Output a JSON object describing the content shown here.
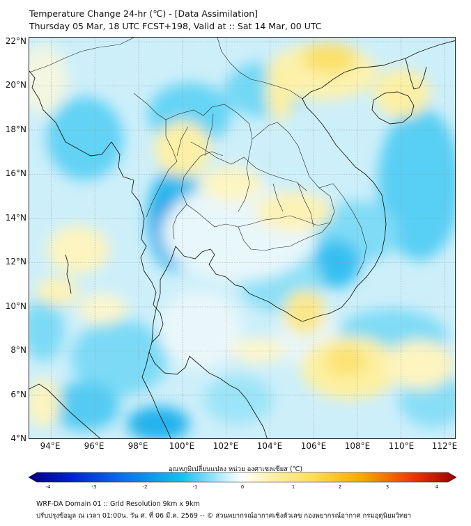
{
  "header": {
    "title_line1": "Temperature Change 24-hr (℃) - [Data Assimilation]",
    "title_line2": "Thursday 05 Mar, 18 UTC FCST+198, Valid at :: Sat 14 Mar, 00 UTC"
  },
  "map": {
    "lon_range": [
      93,
      112.5
    ],
    "lat_range": [
      4,
      22.2
    ],
    "lat_labels": [
      "22°N",
      "20°N",
      "18°N",
      "16°N",
      "14°N",
      "12°N",
      "10°N",
      "8°N",
      "6°N",
      "4°N"
    ],
    "lon_labels": [
      "94°E",
      "96°E",
      "98°E",
      "100°E",
      "102°E",
      "104°E",
      "106°E",
      "108°E",
      "110°E",
      "112°E"
    ],
    "grid": "dotted"
  },
  "colorbar": {
    "title": "อุณหภูมิเปลี่ยนแปลง หน่วย องศาเซลเซียส (℃)",
    "ticks": [
      "-4",
      "-3",
      "-2",
      "-1",
      "0",
      "1",
      "2",
      "3",
      "4"
    ],
    "range": [
      -4,
      4
    ],
    "colors": [
      "#00007f",
      "#0022cc",
      "#0a70e8",
      "#19c0f0",
      "#c8f0fa",
      "#ffffff",
      "#fff2b0",
      "#fbe05a",
      "#f6a800",
      "#e83800",
      "#9a0000"
    ]
  },
  "footer": {
    "line1": "WRF-DA Domain 01 :: Grid Resolution 9km x 9km",
    "line2": "ปรับปรุงข้อมูล ณ เวลา 01:00น. วัน ศ. ที่ 06 มี.ค. 2569 -- © ส่วนพยากรณ์อากาศเชิงตัวเลข กองพยากรณ์อากาศ กรมอุตุนิยมวิทยา"
  }
}
